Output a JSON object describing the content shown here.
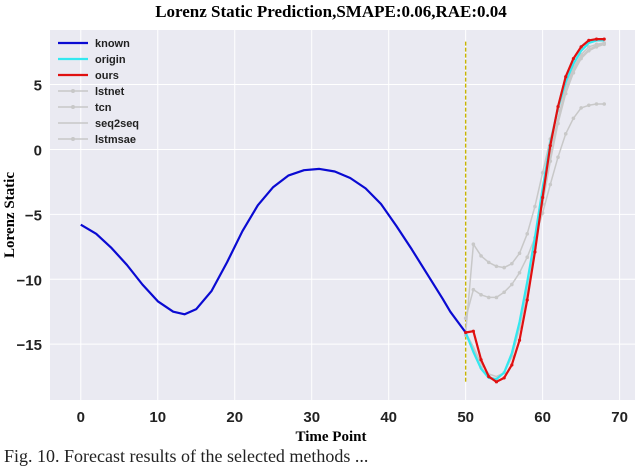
{
  "chart_data": {
    "type": "line",
    "title": "Lorenz Static Prediction,SMAPE:0.06,RAE:0.04",
    "xlabel": "Time Point",
    "ylabel": "Lorenz Static",
    "xlim": [
      -4,
      72
    ],
    "ylim": [
      -19.3,
      9.2
    ],
    "xticks": [
      0,
      10,
      20,
      30,
      40,
      50,
      60,
      70
    ],
    "yticks": [
      5,
      0,
      -5,
      -10,
      -15
    ],
    "grid": true,
    "legend_position": "top-left",
    "forecast_start": 50,
    "series": [
      {
        "name": "known",
        "color": "#0a0ad2",
        "width": 2.2,
        "marker": false,
        "x": [
          0,
          2,
          4,
          6,
          8,
          10,
          12,
          13.5,
          15,
          17,
          19,
          21,
          23,
          25,
          27,
          29,
          31,
          33,
          35,
          37,
          39,
          41,
          43,
          45,
          47,
          48,
          49,
          50
        ],
        "y": [
          -5.8,
          -6.5,
          -7.6,
          -8.9,
          -10.4,
          -11.7,
          -12.5,
          -12.7,
          -12.3,
          -10.9,
          -8.7,
          -6.3,
          -4.3,
          -2.9,
          -2.0,
          -1.6,
          -1.5,
          -1.7,
          -2.2,
          -3.0,
          -4.2,
          -5.9,
          -7.7,
          -9.6,
          -11.5,
          -12.5,
          -13.3,
          -14.1
        ]
      },
      {
        "name": "origin",
        "color": "#33e8f0",
        "width": 2.2,
        "marker": false,
        "x": [
          50,
          51,
          52,
          53,
          54,
          55,
          56,
          57,
          58,
          59,
          60,
          61,
          62,
          63,
          64,
          65,
          66,
          67,
          68
        ],
        "y": [
          -14.1,
          -15.6,
          -16.9,
          -17.6,
          -17.7,
          -17.2,
          -15.7,
          -13.3,
          -10.2,
          -6.8,
          -3.0,
          0.5,
          3.2,
          5.2,
          6.6,
          7.6,
          8.2,
          8.4,
          8.4
        ]
      },
      {
        "name": "ours",
        "color": "#e01010",
        "width": 2.2,
        "marker": true,
        "x": [
          50,
          51,
          52,
          53,
          54,
          55,
          56,
          57,
          58,
          59,
          60,
          61,
          62,
          63,
          64,
          65,
          66,
          67,
          68
        ],
        "y": [
          -14.1,
          -14.0,
          -16.2,
          -17.5,
          -17.9,
          -17.6,
          -16.6,
          -14.7,
          -11.6,
          -7.9,
          -3.7,
          0.3,
          3.3,
          5.6,
          7.0,
          7.9,
          8.4,
          8.5,
          8.5
        ]
      },
      {
        "name": "lstnet",
        "color": "#c8c8c8",
        "width": 1.5,
        "marker": true,
        "x": [
          50,
          51,
          52,
          53,
          54,
          55,
          56,
          57,
          58,
          59,
          60,
          61,
          62,
          63,
          64,
          65,
          66,
          67,
          68
        ],
        "y": [
          -14.1,
          -7.3,
          -8.2,
          -8.7,
          -9.0,
          -9.1,
          -8.8,
          -8.0,
          -6.5,
          -4.4,
          -1.8,
          0.8,
          3.0,
          4.9,
          6.3,
          7.3,
          7.9,
          8.1,
          8.2
        ]
      },
      {
        "name": "tcn",
        "color": "#c8c8c8",
        "width": 1.5,
        "marker": true,
        "x": [
          50,
          51,
          52,
          53,
          54,
          55,
          56,
          57,
          58,
          59,
          60,
          61,
          62,
          63,
          64,
          65,
          66,
          67,
          68
        ],
        "y": [
          -13.0,
          -10.8,
          -11.2,
          -11.4,
          -11.4,
          -11.0,
          -10.4,
          -9.5,
          -8.3,
          -6.8,
          -4.9,
          -2.7,
          -0.6,
          1.2,
          2.4,
          3.2,
          3.4,
          3.5,
          3.5
        ]
      },
      {
        "name": "seq2seq",
        "color": "#c8c8c8",
        "width": 1.5,
        "marker": false,
        "x": [
          50,
          51,
          52,
          53,
          54,
          55,
          56,
          57,
          58,
          59,
          60,
          61,
          62,
          63,
          64,
          65,
          66,
          67,
          68
        ],
        "y": [
          -14.1,
          -15.2,
          -16.5,
          -17.3,
          -17.5,
          -17.2,
          -16.0,
          -13.8,
          -10.8,
          -7.4,
          -3.8,
          -0.4,
          2.4,
          4.6,
          6.1,
          7.1,
          7.7,
          8.0,
          8.2
        ]
      },
      {
        "name": "lstmsae",
        "color": "#c8c8c8",
        "width": 1.5,
        "marker": true,
        "x": [
          50,
          51,
          52,
          53,
          54,
          55,
          56,
          57,
          58,
          59,
          60,
          61,
          62,
          63,
          64,
          65,
          66,
          67,
          68
        ],
        "y": [
          -14.3,
          -15.4,
          -16.8,
          -17.5,
          -17.7,
          -17.2,
          -15.9,
          -13.7,
          -10.9,
          -7.6,
          -4.2,
          -0.9,
          2.0,
          4.3,
          5.9,
          7.0,
          7.6,
          7.9,
          8.1
        ]
      }
    ]
  },
  "caption": "Fig. 10. Forecast results of the selected methods ..."
}
